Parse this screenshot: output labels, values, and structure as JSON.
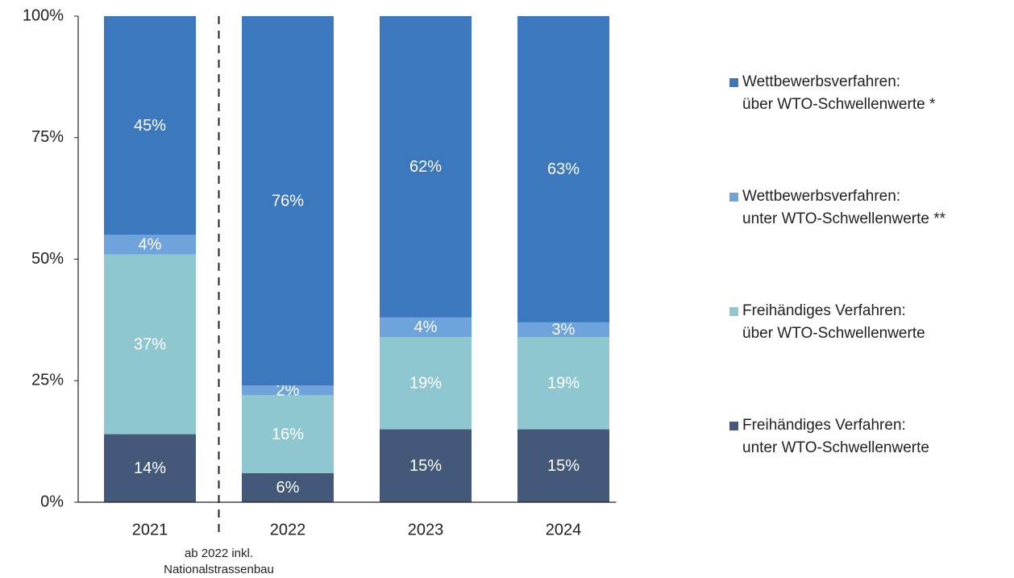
{
  "chart_data": {
    "type": "stacked_bar",
    "categories": [
      "2021",
      "2022",
      "2023",
      "2024"
    ],
    "series": [
      {
        "name": "Freihändiges Verfahren:\nunter WTO-Schwellenwerte",
        "color": "#44597a",
        "values": [
          14,
          6,
          15,
          15
        ],
        "value_labels": [
          "14%",
          "6%",
          "15%",
          "15%"
        ]
      },
      {
        "name": "Freihändiges Verfahren:\nüber WTO-Schwellenwerte",
        "color": "#8fc7d0",
        "values": [
          37,
          16,
          19,
          19
        ],
        "value_labels": [
          "37%",
          "16%",
          "19%",
          "19%"
        ]
      },
      {
        "name": "Wettbewerbsverfahren:\nunter WTO-Schwellenwerte **",
        "color": "#6fa3dc",
        "values": [
          4,
          2,
          4,
          3
        ],
        "value_labels": [
          "4%",
          "2%",
          "4%",
          "3%"
        ]
      },
      {
        "name": "Wettbewerbsverfahren:\nüber WTO-Schwellenwerte *",
        "color": "#3c78be",
        "values": [
          45,
          76,
          62,
          63
        ],
        "value_labels": [
          "45%",
          "76%",
          "62%",
          "63%"
        ]
      }
    ],
    "ylim": [
      0,
      100
    ],
    "yticks": [
      {
        "value": 0,
        "label": "0%"
      },
      {
        "value": 25,
        "label": "25%"
      },
      {
        "value": 50,
        "label": "50%"
      },
      {
        "value": 75,
        "label": "75%"
      },
      {
        "value": 100,
        "label": "100%"
      }
    ],
    "annotation": [
      "ab 2022 inkl.",
      "Nationalstrassenbau"
    ],
    "legend": "right",
    "grid": false
  }
}
